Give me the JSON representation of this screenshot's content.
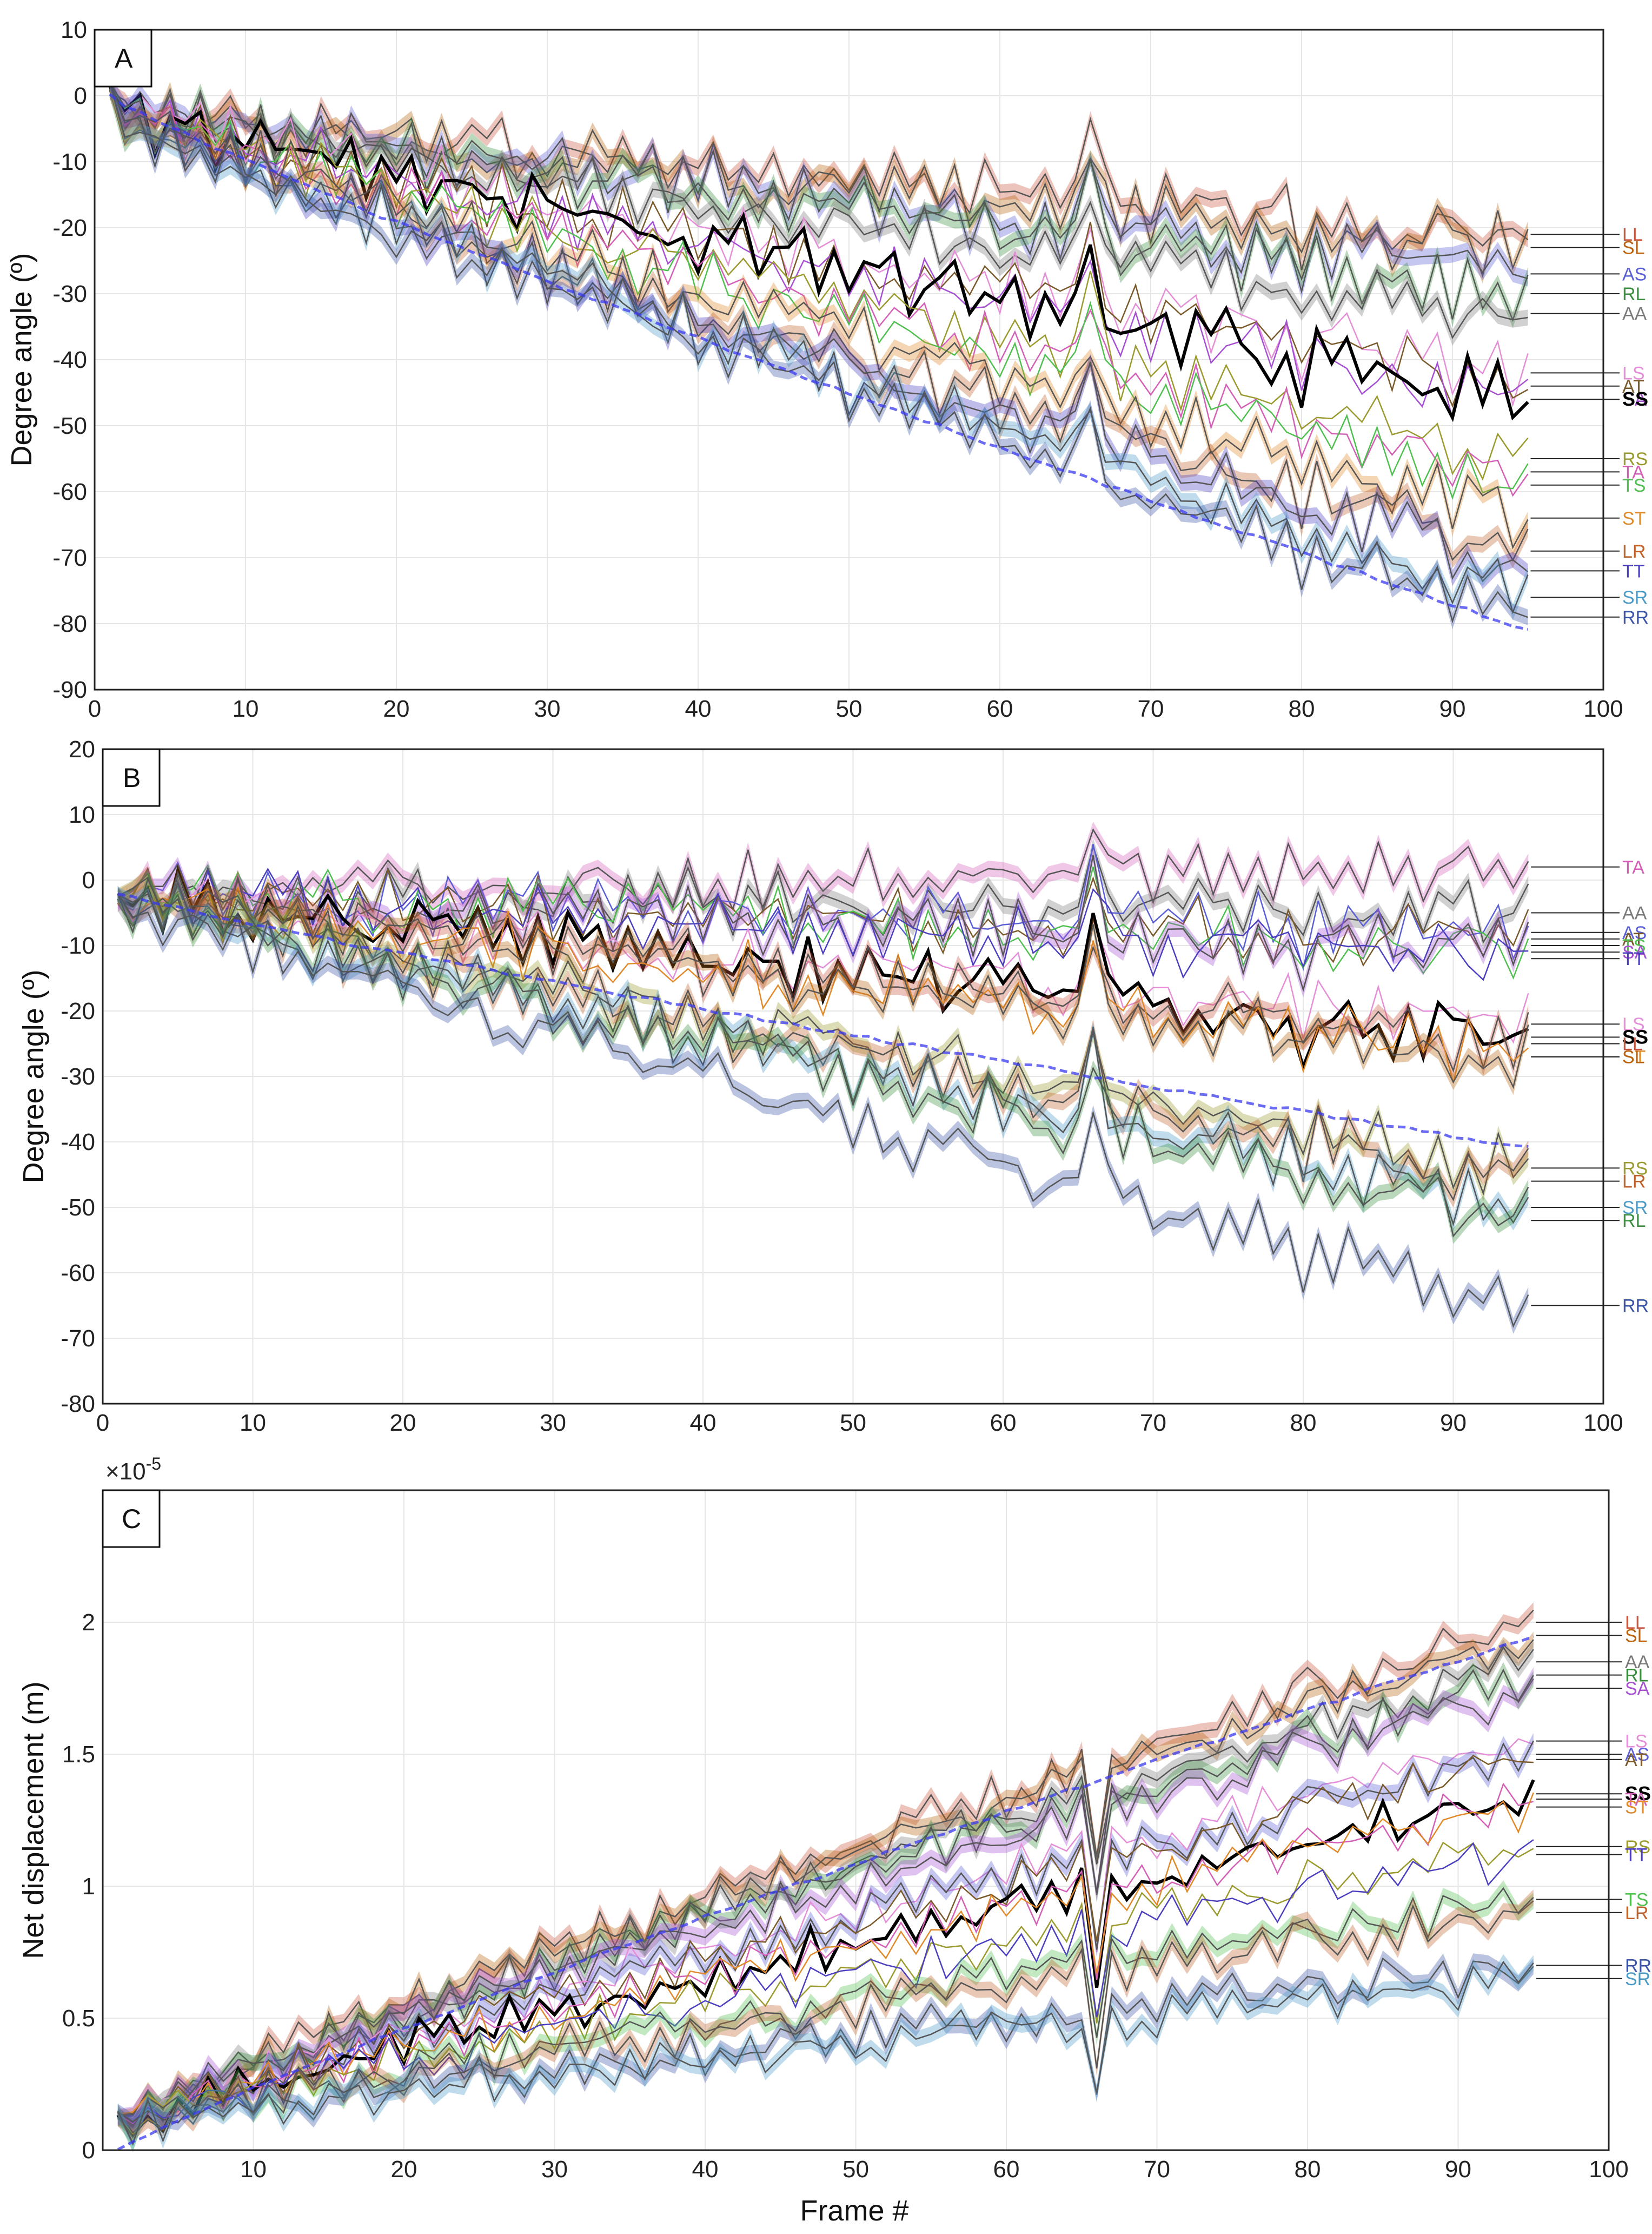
{
  "figure": {
    "x_axis_label": "Frame #",
    "panel_A_tag": "A",
    "panel_B_tag": "B",
    "panel_C_tag": "C",
    "y_label_AB": "Degree angle (º)",
    "y_label_C": "Net displacement (m)",
    "exponent_C": "×10",
    "exponent_C_power": "-5"
  },
  "colors": {
    "LL": "#c8553d",
    "SL": "#b8620d",
    "AS": "#5b5fd6",
    "RL": "#3a8f3e",
    "AA": "#7a7a7a",
    "LS": "#e48fd8",
    "AT": "#7a5a2a",
    "SA": "#a64fd3",
    "RS": "#9a9a2e",
    "TA": "#d35fb7",
    "TS": "#4fc04f",
    "ST": "#e08a2a",
    "LR": "#c0622a",
    "TT": "#4b3fbf",
    "SR": "#4a9ac8",
    "RR": "#3a55a8",
    "SS": "#000000",
    "blue_trace": "#3a3af0"
  },
  "chart_data": [
    {
      "panel": "A",
      "type": "line",
      "xlabel": "",
      "ylabel": "Degree angle (º)",
      "xlim": [
        0,
        100
      ],
      "ylim": [
        -90,
        10
      ],
      "xticks": [
        0,
        10,
        20,
        30,
        40,
        50,
        60,
        70,
        80,
        90,
        100
      ],
      "yticks": [
        10,
        0,
        -10,
        -20,
        -30,
        -40,
        -50,
        -60,
        -70,
        -80,
        -90
      ],
      "grid": true,
      "frames": [
        1,
        95
      ],
      "series": [
        {
          "name": "LL",
          "end": -21,
          "band": true
        },
        {
          "name": "SL",
          "end": -23,
          "band": true
        },
        {
          "name": "AS",
          "end": -27,
          "band": true
        },
        {
          "name": "RL",
          "end": -30,
          "band": true
        },
        {
          "name": "AA",
          "end": -33,
          "band": true
        },
        {
          "name": "LS",
          "end": -42,
          "band": false
        },
        {
          "name": "AT",
          "end": -44,
          "band": false
        },
        {
          "name": "SA",
          "end": -46,
          "band": false
        },
        {
          "name": "SS",
          "end": -46,
          "band": false,
          "bold": true
        },
        {
          "name": "RS",
          "end": -55,
          "band": false
        },
        {
          "name": "TA",
          "end": -57,
          "band": false
        },
        {
          "name": "TS",
          "end": -59,
          "band": false
        },
        {
          "name": "ST",
          "end": -64,
          "band": true
        },
        {
          "name": "LR",
          "end": -69,
          "band": true
        },
        {
          "name": "TT",
          "end": -72,
          "band": true
        },
        {
          "name": "SR",
          "end": -76,
          "band": true
        },
        {
          "name": "RR",
          "end": -79,
          "band": true
        },
        {
          "name": "blue_trace",
          "start": 0,
          "end": -81,
          "dashed": true
        }
      ],
      "labels": [
        "LL",
        "SL",
        "AS",
        "RL",
        "AA",
        "LS",
        "AT",
        "SA",
        "SS",
        "RS",
        "TA",
        "TS",
        "ST",
        "LR",
        "TT",
        "SR",
        "RR"
      ]
    },
    {
      "panel": "B",
      "type": "line",
      "xlabel": "",
      "ylabel": "Degree angle (º)",
      "xlim": [
        0,
        100
      ],
      "ylim": [
        -80,
        20
      ],
      "xticks": [
        0,
        10,
        20,
        30,
        40,
        50,
        60,
        70,
        80,
        90,
        100
      ],
      "yticks": [
        20,
        10,
        0,
        -10,
        -20,
        -30,
        -40,
        -50,
        -60,
        -70,
        -80
      ],
      "grid": true,
      "frames": [
        1,
        95
      ],
      "series": [
        {
          "name": "TA",
          "end": 2,
          "band": true
        },
        {
          "name": "AA",
          "end": -5,
          "band": true
        },
        {
          "name": "AS",
          "end": -8,
          "band": false
        },
        {
          "name": "AT",
          "end": -9,
          "band": false
        },
        {
          "name": "TS",
          "end": -10,
          "band": false
        },
        {
          "name": "SA",
          "end": -11,
          "band": true
        },
        {
          "name": "TT",
          "end": -12,
          "band": false
        },
        {
          "name": "LS",
          "end": -22,
          "band": false
        },
        {
          "name": "SS",
          "end": -24,
          "band": false,
          "bold": true
        },
        {
          "name": "LL",
          "end": -25,
          "band": true
        },
        {
          "name": "ST",
          "end": -27,
          "band": false
        },
        {
          "name": "SL",
          "end": -27,
          "band": true
        },
        {
          "name": "RS",
          "end": -44,
          "band": true
        },
        {
          "name": "LR",
          "end": -46,
          "band": true
        },
        {
          "name": "SR",
          "end": -50,
          "band": true
        },
        {
          "name": "RL",
          "end": -52,
          "band": true
        },
        {
          "name": "RR",
          "end": -65,
          "band": true
        },
        {
          "name": "blue_trace",
          "start": -2,
          "end": -41,
          "dashed": true
        }
      ],
      "labels": [
        "TA",
        "AA",
        "AS",
        "AT",
        "TS",
        "SA",
        "TT",
        "LS",
        "SS",
        "LL",
        "ST",
        "SL",
        "RS",
        "LR",
        "SR",
        "RL",
        "RR"
      ]
    },
    {
      "panel": "C",
      "type": "line",
      "xlabel": "Frame #",
      "ylabel": "Net displacement (m)",
      "xlim": [
        0,
        100
      ],
      "ylim": [
        0,
        2.5
      ],
      "y_scale_note": "×10^-5",
      "xticks": [
        10,
        20,
        30,
        40,
        50,
        60,
        70,
        80,
        90,
        100
      ],
      "yticks": [
        0,
        0.5,
        1,
        1.5,
        2
      ],
      "ytick_labels": [
        "0",
        "0.5",
        "1",
        "1.5",
        "2"
      ],
      "grid": true,
      "frames": [
        1,
        95
      ],
      "series": [
        {
          "name": "LL",
          "end": 2.0,
          "band": true
        },
        {
          "name": "SL",
          "end": 1.95,
          "band": true
        },
        {
          "name": "AA",
          "end": 1.85,
          "band": true
        },
        {
          "name": "RL",
          "end": 1.8,
          "band": true
        },
        {
          "name": "SA",
          "end": 1.75,
          "band": true
        },
        {
          "name": "LS",
          "end": 1.55,
          "band": false
        },
        {
          "name": "AS",
          "end": 1.5,
          "band": true
        },
        {
          "name": "AT",
          "end": 1.48,
          "band": false
        },
        {
          "name": "SS",
          "end": 1.35,
          "band": false,
          "bold": true
        },
        {
          "name": "TA",
          "end": 1.33,
          "band": false
        },
        {
          "name": "ST",
          "end": 1.3,
          "band": false
        },
        {
          "name": "RS",
          "end": 1.15,
          "band": false
        },
        {
          "name": "TT",
          "end": 1.12,
          "band": false
        },
        {
          "name": "TS",
          "end": 0.95,
          "band": true
        },
        {
          "name": "LR",
          "end": 0.9,
          "band": true
        },
        {
          "name": "RR",
          "end": 0.7,
          "band": true
        },
        {
          "name": "SR",
          "end": 0.65,
          "band": true
        },
        {
          "name": "blue_trace",
          "start": 0,
          "end": 1.95,
          "dashed": true
        }
      ],
      "labels": [
        "LL",
        "SL",
        "AA",
        "RL",
        "SA",
        "LS",
        "AS",
        "AT",
        "SS",
        "TA",
        "ST",
        "RS",
        "TT",
        "TS",
        "LR",
        "RR",
        "SR"
      ]
    }
  ]
}
